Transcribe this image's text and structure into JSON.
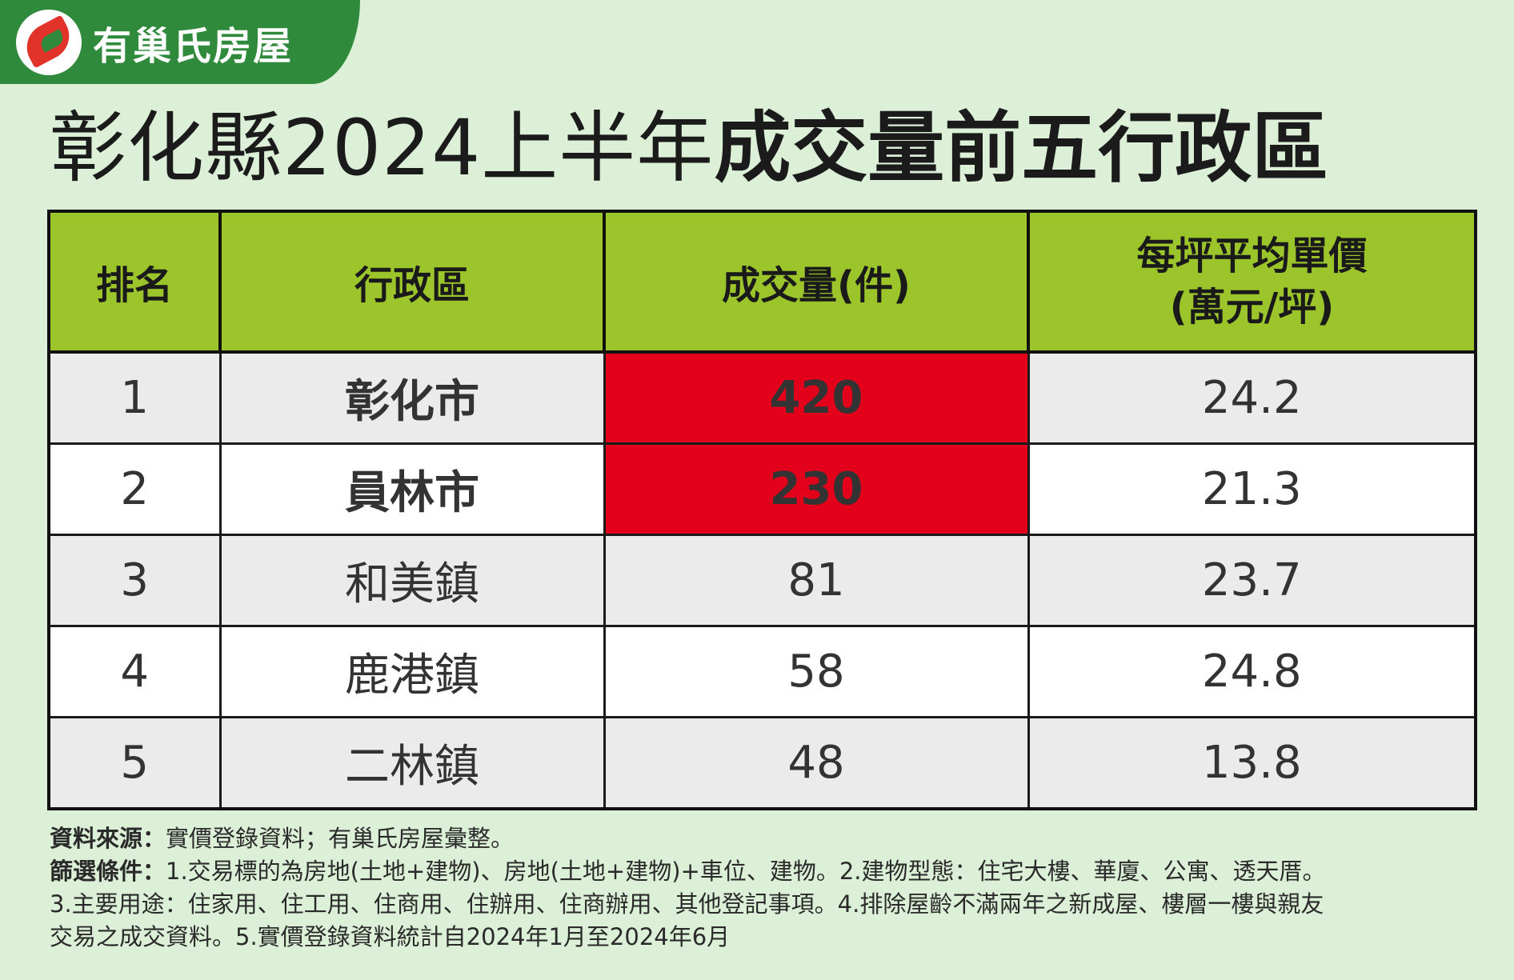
{
  "brand": {
    "name": "有巢氏房屋"
  },
  "title": {
    "part1": "彰化縣2024上半年",
    "part2": "成交量前五行政區"
  },
  "table": {
    "headers": {
      "rank": "排名",
      "district": "行政區",
      "volume": "成交量(件)",
      "price_line1": "每坪平均單價",
      "price_line2": "(萬元/坪)"
    },
    "rows": [
      {
        "rank": "1",
        "district": "彰化市",
        "volume": "420",
        "price": "24.2"
      },
      {
        "rank": "2",
        "district": "員林市",
        "volume": "230",
        "price": "21.3"
      },
      {
        "rank": "3",
        "district": "和美鎮",
        "volume": "81",
        "price": "23.7"
      },
      {
        "rank": "4",
        "district": "鹿港鎮",
        "volume": "58",
        "price": "24.8"
      },
      {
        "rank": "5",
        "district": "二林鎮",
        "volume": "48",
        "price": "13.8"
      }
    ]
  },
  "notes": {
    "source_label": "資料來源：",
    "source_text": "實價登錄資料；有巢氏房屋彙整。",
    "filter_label": "篩選條件：",
    "filter_line1": "1.交易標的為房地(土地+建物)、房地(土地+建物)+車位、建物。2.建物型態：住宅大樓、華廈、公寓、透天厝。",
    "filter_line2": "3.主要用途：住家用、住工用、住商用、住辦用、住商辦用、其他登記事項。4.排除屋齡不滿兩年之新成屋、樓層一樓與親友",
    "filter_line3": "交易之成交資料。5.實價登錄資料統計自2024年1月至2024年6月"
  },
  "colors": {
    "header_green": "#9bc52a",
    "highlight_red": "#e3001b",
    "district_red": "#c3121f",
    "background": "#dcefd7",
    "brand_green": "#2f8a3c"
  }
}
